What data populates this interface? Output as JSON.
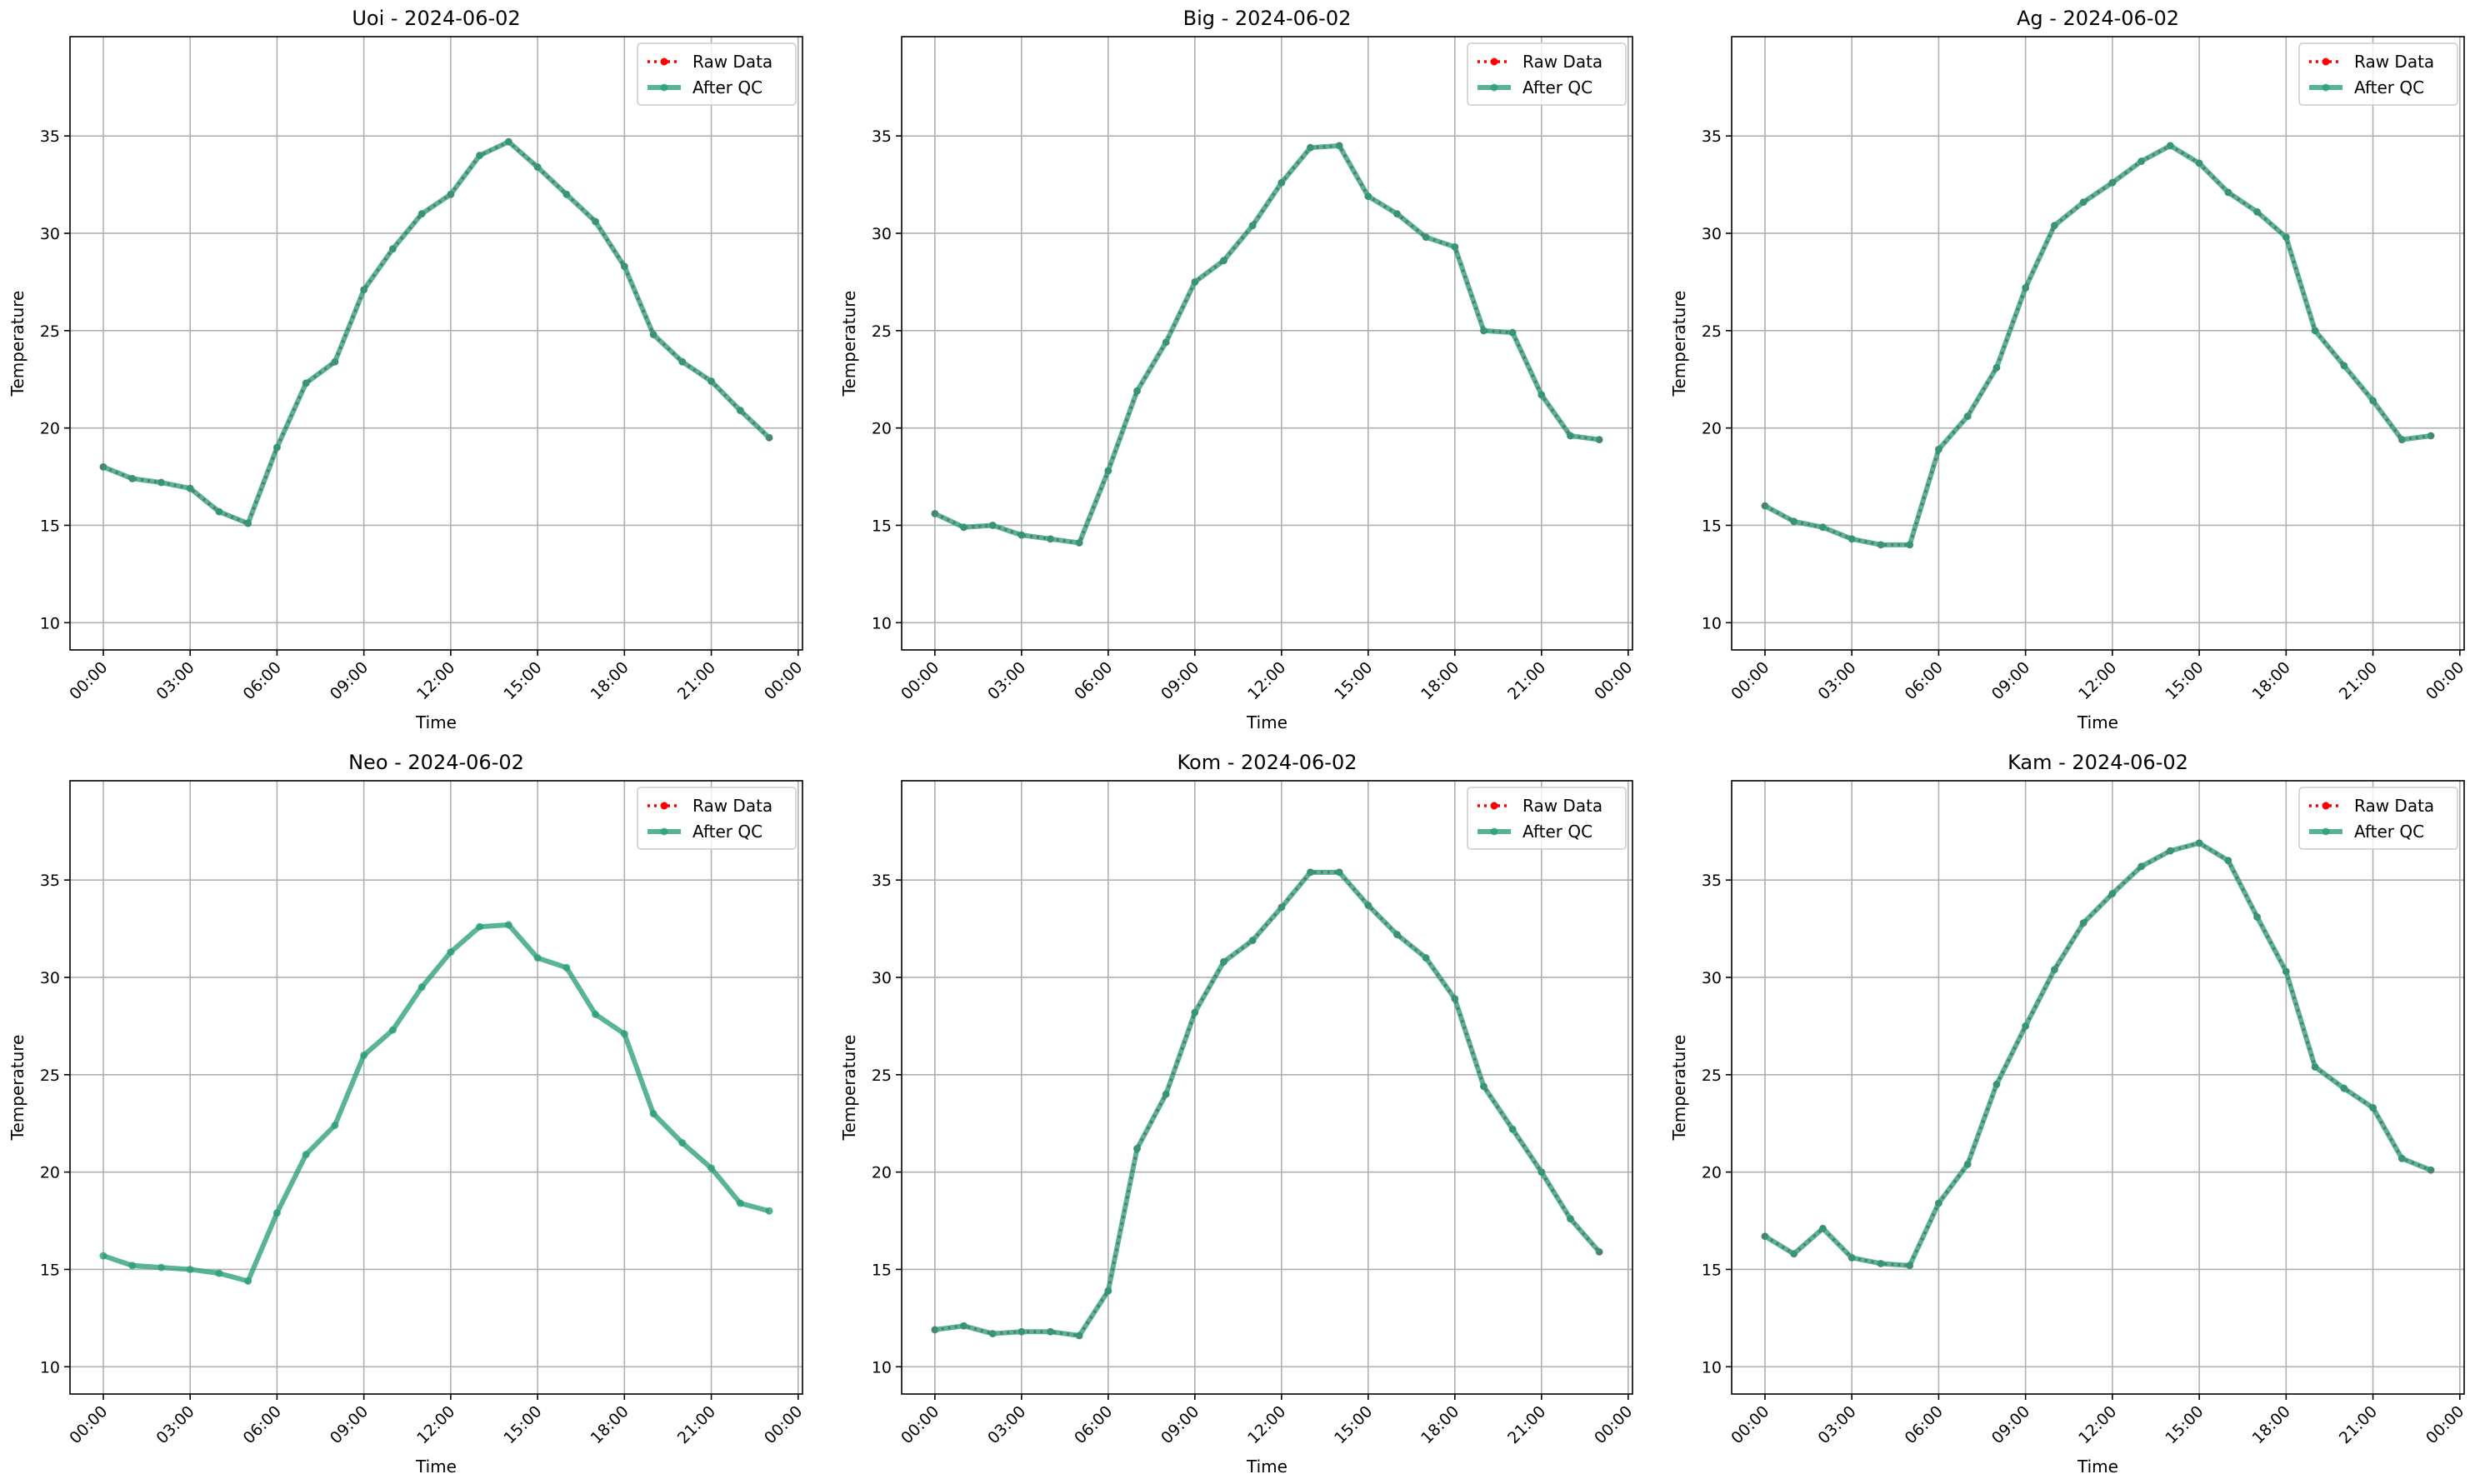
{
  "chart_data": [
    {
      "type": "line",
      "title": "Uoi - 2024-06-02",
      "xlabel": "Time",
      "ylabel": "Temperature",
      "x": [
        0,
        1,
        2,
        3,
        4,
        5,
        6,
        7,
        8,
        9,
        10,
        11,
        12,
        13,
        14,
        15,
        16,
        17,
        18,
        19,
        20,
        21,
        22,
        23
      ],
      "series": [
        {
          "name": "Raw Data",
          "color": "#ff0000",
          "values": [
            18.0,
            17.4,
            17.2,
            16.9,
            15.7,
            15.1,
            19.0,
            22.3,
            23.4,
            27.1,
            29.2,
            31.0,
            32.0,
            34.0,
            34.7,
            33.4,
            32.0,
            30.6,
            28.3,
            24.8,
            23.4,
            22.4,
            20.9,
            19.5
          ]
        },
        {
          "name": "After QC",
          "color": "#2a9d7a",
          "values": [
            18.0,
            17.4,
            17.2,
            16.9,
            15.7,
            15.1,
            19.0,
            22.3,
            23.4,
            27.1,
            29.2,
            31.0,
            32.0,
            34.0,
            34.7,
            33.4,
            32.0,
            30.6,
            28.3,
            24.8,
            23.4,
            22.4,
            20.9,
            19.5
          ]
        }
      ],
      "xlim": [
        -1.15,
        24.15
      ],
      "ylim": [
        8.6,
        40.1
      ],
      "xticks": [
        {
          "value": 0,
          "label": "00:00"
        },
        {
          "value": 3,
          "label": "03:00"
        },
        {
          "value": 6,
          "label": "06:00"
        },
        {
          "value": 9,
          "label": "09:00"
        },
        {
          "value": 12,
          "label": "12:00"
        },
        {
          "value": 15,
          "label": "15:00"
        },
        {
          "value": 18,
          "label": "18:00"
        },
        {
          "value": 21,
          "label": "21:00"
        },
        {
          "value": 24,
          "label": "00:00"
        }
      ],
      "yticks": [
        10,
        15,
        20,
        25,
        30,
        35
      ],
      "grid": true,
      "legend": "upper right"
    },
    {
      "type": "line",
      "title": "Big - 2024-06-02",
      "xlabel": "Time",
      "ylabel": "Temperature",
      "x": [
        0,
        1,
        2,
        3,
        4,
        5,
        6,
        7,
        8,
        9,
        10,
        11,
        12,
        13,
        14,
        15,
        16,
        17,
        18,
        19,
        20,
        21,
        22,
        23
      ],
      "series": [
        {
          "name": "Raw Data",
          "color": "#ff0000",
          "values": [
            15.6,
            14.9,
            15.0,
            14.5,
            14.3,
            14.1,
            17.8,
            21.9,
            24.4,
            27.5,
            28.6,
            30.4,
            32.6,
            34.4,
            34.5,
            31.9,
            31.0,
            29.8,
            29.3,
            25.0,
            24.9,
            21.7,
            19.6,
            19.4
          ]
        },
        {
          "name": "After QC",
          "color": "#2a9d7a",
          "values": [
            15.6,
            14.9,
            15.0,
            14.5,
            14.3,
            14.1,
            17.8,
            21.9,
            24.4,
            27.5,
            28.6,
            30.4,
            32.6,
            34.4,
            34.5,
            31.9,
            31.0,
            29.8,
            29.3,
            25.0,
            24.9,
            21.7,
            19.6,
            19.4
          ]
        }
      ],
      "xlim": [
        -1.15,
        24.15
      ],
      "ylim": [
        8.6,
        40.1
      ],
      "xticks": [
        {
          "value": 0,
          "label": "00:00"
        },
        {
          "value": 3,
          "label": "03:00"
        },
        {
          "value": 6,
          "label": "06:00"
        },
        {
          "value": 9,
          "label": "09:00"
        },
        {
          "value": 12,
          "label": "12:00"
        },
        {
          "value": 15,
          "label": "15:00"
        },
        {
          "value": 18,
          "label": "18:00"
        },
        {
          "value": 21,
          "label": "21:00"
        },
        {
          "value": 24,
          "label": "00:00"
        }
      ],
      "yticks": [
        10,
        15,
        20,
        25,
        30,
        35
      ],
      "grid": true,
      "legend": "upper right"
    },
    {
      "type": "line",
      "title": "Ag - 2024-06-02",
      "xlabel": "Time",
      "ylabel": "Temperature",
      "x": [
        0,
        1,
        2,
        3,
        4,
        5,
        6,
        7,
        8,
        9,
        10,
        11,
        12,
        13,
        14,
        15,
        16,
        17,
        18,
        19,
        20,
        21,
        22,
        23
      ],
      "series": [
        {
          "name": "Raw Data",
          "color": "#ff0000",
          "values": [
            16.0,
            15.2,
            14.9,
            14.3,
            14.0,
            14.0,
            18.9,
            20.6,
            23.1,
            27.2,
            30.4,
            31.6,
            32.6,
            33.7,
            34.5,
            33.6,
            32.1,
            31.1,
            29.8,
            25.0,
            23.2,
            21.4,
            19.4,
            19.6
          ]
        },
        {
          "name": "After QC",
          "color": "#2a9d7a",
          "values": [
            16.0,
            15.2,
            14.9,
            14.3,
            14.0,
            14.0,
            18.9,
            20.6,
            23.1,
            27.2,
            30.4,
            31.6,
            32.6,
            33.7,
            34.5,
            33.6,
            32.1,
            31.1,
            29.8,
            25.0,
            23.2,
            21.4,
            19.4,
            19.6
          ]
        }
      ],
      "xlim": [
        -1.15,
        24.15
      ],
      "ylim": [
        8.6,
        40.1
      ],
      "xticks": [
        {
          "value": 0,
          "label": "00:00"
        },
        {
          "value": 3,
          "label": "03:00"
        },
        {
          "value": 6,
          "label": "06:00"
        },
        {
          "value": 9,
          "label": "09:00"
        },
        {
          "value": 12,
          "label": "12:00"
        },
        {
          "value": 15,
          "label": "15:00"
        },
        {
          "value": 18,
          "label": "18:00"
        },
        {
          "value": 21,
          "label": "21:00"
        },
        {
          "value": 24,
          "label": "00:00"
        }
      ],
      "yticks": [
        10,
        15,
        20,
        25,
        30,
        35
      ],
      "grid": true,
      "legend": "upper right"
    },
    {
      "type": "line",
      "title": "Neo - 2024-06-02",
      "xlabel": "Time",
      "ylabel": "Temperature",
      "x": [
        0,
        1,
        2,
        3,
        4,
        5,
        6,
        7,
        8,
        9,
        10,
        11,
        12,
        13,
        14,
        15,
        16,
        17,
        18,
        19,
        20,
        21,
        22,
        23
      ],
      "series": [
        {
          "name": "Raw Data",
          "color": "#ff0000",
          "values": [
            null,
            null,
            null,
            null,
            null,
            null,
            null,
            null,
            null,
            null,
            null,
            null,
            null,
            null,
            null,
            null,
            null,
            null,
            null,
            null,
            null,
            null,
            null,
            null
          ]
        },
        {
          "name": "After QC",
          "color": "#2a9d7a",
          "values": [
            15.7,
            15.2,
            15.1,
            15.0,
            14.8,
            14.4,
            17.9,
            20.9,
            22.4,
            26.0,
            27.3,
            29.5,
            31.3,
            32.6,
            32.7,
            31.0,
            30.5,
            28.1,
            27.1,
            23.0,
            21.5,
            20.2,
            18.4,
            18.0
          ]
        }
      ],
      "xlim": [
        -1.15,
        24.15
      ],
      "ylim": [
        8.6,
        40.1
      ],
      "xticks": [
        {
          "value": 0,
          "label": "00:00"
        },
        {
          "value": 3,
          "label": "03:00"
        },
        {
          "value": 6,
          "label": "06:00"
        },
        {
          "value": 9,
          "label": "09:00"
        },
        {
          "value": 12,
          "label": "12:00"
        },
        {
          "value": 15,
          "label": "15:00"
        },
        {
          "value": 18,
          "label": "18:00"
        },
        {
          "value": 21,
          "label": "21:00"
        },
        {
          "value": 24,
          "label": "00:00"
        }
      ],
      "yticks": [
        10,
        15,
        20,
        25,
        30,
        35
      ],
      "grid": true,
      "legend": "upper right"
    },
    {
      "type": "line",
      "title": "Kom - 2024-06-02",
      "xlabel": "Time",
      "ylabel": "Temperature",
      "x": [
        0,
        1,
        2,
        3,
        4,
        5,
        6,
        7,
        8,
        9,
        10,
        11,
        12,
        13,
        14,
        15,
        16,
        17,
        18,
        19,
        20,
        21,
        22,
        23
      ],
      "series": [
        {
          "name": "Raw Data",
          "color": "#ff0000",
          "values": [
            11.9,
            12.1,
            11.7,
            11.8,
            11.8,
            11.6,
            13.9,
            21.2,
            24.0,
            28.2,
            30.8,
            31.9,
            33.6,
            35.4,
            35.4,
            33.7,
            32.2,
            31.0,
            28.9,
            24.4,
            22.2,
            20.0,
            17.6,
            15.9
          ]
        },
        {
          "name": "After QC",
          "color": "#2a9d7a",
          "values": [
            11.9,
            12.1,
            11.7,
            11.8,
            11.8,
            11.6,
            13.9,
            21.2,
            24.0,
            28.2,
            30.8,
            31.9,
            33.6,
            35.4,
            35.4,
            33.7,
            32.2,
            31.0,
            28.9,
            24.4,
            22.2,
            20.0,
            17.6,
            15.9
          ]
        }
      ],
      "xlim": [
        -1.15,
        24.15
      ],
      "ylim": [
        8.6,
        40.1
      ],
      "xticks": [
        {
          "value": 0,
          "label": "00:00"
        },
        {
          "value": 3,
          "label": "03:00"
        },
        {
          "value": 6,
          "label": "06:00"
        },
        {
          "value": 9,
          "label": "09:00"
        },
        {
          "value": 12,
          "label": "12:00"
        },
        {
          "value": 15,
          "label": "15:00"
        },
        {
          "value": 18,
          "label": "18:00"
        },
        {
          "value": 21,
          "label": "21:00"
        },
        {
          "value": 24,
          "label": "00:00"
        }
      ],
      "yticks": [
        10,
        15,
        20,
        25,
        30,
        35
      ],
      "grid": true,
      "legend": "upper right"
    },
    {
      "type": "line",
      "title": "Kam - 2024-06-02",
      "xlabel": "Time",
      "ylabel": "Temperature",
      "x": [
        0,
        1,
        2,
        3,
        4,
        5,
        6,
        7,
        8,
        9,
        10,
        11,
        12,
        13,
        14,
        15,
        16,
        17,
        18,
        19,
        20,
        21,
        22,
        23
      ],
      "series": [
        {
          "name": "Raw Data",
          "color": "#ff0000",
          "values": [
            16.7,
            15.8,
            17.1,
            15.6,
            15.3,
            15.2,
            18.4,
            20.4,
            24.5,
            27.5,
            30.4,
            32.8,
            34.3,
            35.7,
            36.5,
            36.9,
            36.0,
            33.1,
            30.3,
            25.4,
            24.3,
            23.3,
            20.7,
            20.1
          ]
        },
        {
          "name": "After QC",
          "color": "#2a9d7a",
          "values": [
            16.7,
            15.8,
            17.1,
            15.6,
            15.3,
            15.2,
            18.4,
            20.4,
            24.5,
            27.5,
            30.4,
            32.8,
            34.3,
            35.7,
            36.5,
            36.9,
            36.0,
            33.1,
            30.3,
            25.4,
            24.3,
            23.3,
            20.7,
            20.1
          ]
        }
      ],
      "xlim": [
        -1.15,
        24.15
      ],
      "ylim": [
        8.6,
        40.1
      ],
      "xticks": [
        {
          "value": 0,
          "label": "00:00"
        },
        {
          "value": 3,
          "label": "03:00"
        },
        {
          "value": 6,
          "label": "06:00"
        },
        {
          "value": 9,
          "label": "09:00"
        },
        {
          "value": 12,
          "label": "12:00"
        },
        {
          "value": 15,
          "label": "15:00"
        },
        {
          "value": 18,
          "label": "18:00"
        },
        {
          "value": 21,
          "label": "21:00"
        },
        {
          "value": 24,
          "label": "00:00"
        }
      ],
      "yticks": [
        10,
        15,
        20,
        25,
        30,
        35
      ],
      "grid": true,
      "legend": "upper right"
    }
  ]
}
